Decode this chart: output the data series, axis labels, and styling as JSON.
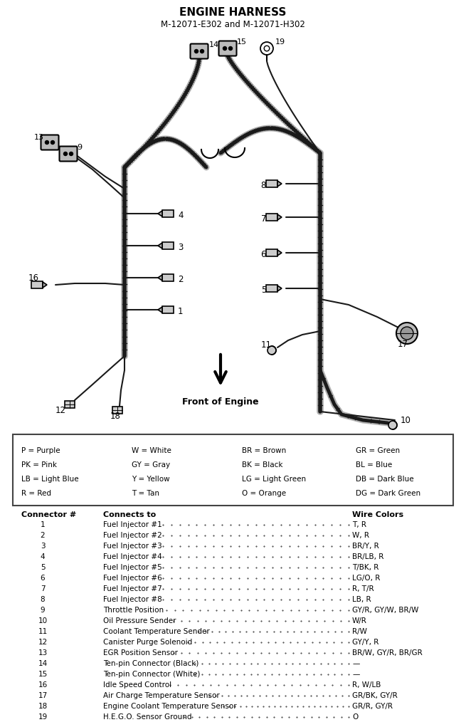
{
  "title_line1": "ENGINE HARNESS",
  "title_line2": "M-12071-E302 and M-12071-H302",
  "arrow_label": "Front of Engine",
  "color_legend": [
    [
      "P = Purple",
      "W = White",
      "BR = Brown",
      "GR = Green"
    ],
    [
      "PK = Pink",
      "GY = Gray",
      "BK = Black",
      "BL = Blue"
    ],
    [
      "LB = Light Blue",
      "Y = Yellow",
      "LG = Light Green",
      "DB = Dark Blue"
    ],
    [
      "R = Red",
      "T = Tan",
      "O = Orange",
      "DG = Dark Green"
    ]
  ],
  "table_rows": [
    [
      "1",
      "Fuel Injector #1",
      "T, R"
    ],
    [
      "2",
      "Fuel Injector #2",
      "W, R"
    ],
    [
      "3",
      "Fuel Injector #3",
      "BR/Y, R"
    ],
    [
      "4",
      "Fuel Injector #4",
      "BR/LB, R"
    ],
    [
      "5",
      "Fuel Injector #5",
      "T/BK, R"
    ],
    [
      "6",
      "Fuel Injector #6",
      "LG/O, R"
    ],
    [
      "7",
      "Fuel Injector #7",
      "R, T/R"
    ],
    [
      "8",
      "Fuel Injector #8",
      "LB, R"
    ],
    [
      "9",
      "Throttle Position",
      "GY/R, GY/W, BR/W"
    ],
    [
      "10",
      "Oil Pressure Sender",
      "W/R"
    ],
    [
      "11",
      "Coolant Temperature Sender",
      "R/W"
    ],
    [
      "12",
      "Canister Purge Solenoid",
      "GY/Y, R"
    ],
    [
      "13",
      "EGR Position Sensor",
      "BR/W, GY/R, BR/GR"
    ],
    [
      "14",
      "Ten-pin Connector (Black)",
      "—"
    ],
    [
      "15",
      "Ten-pin Connector (White)",
      "—"
    ],
    [
      "16",
      "Idle Speed Control",
      "R, W/LB"
    ],
    [
      "17",
      "Air Charge Temperature Sensor",
      "GR/BK, GY/R"
    ],
    [
      "18",
      "Engine Coolant Temperature Sensor",
      "GR/R, GY/R"
    ],
    [
      "19",
      "H.E.G.O. Sensor Ground",
      "O"
    ]
  ],
  "bg_color": "#ffffff",
  "text_color": "#000000"
}
